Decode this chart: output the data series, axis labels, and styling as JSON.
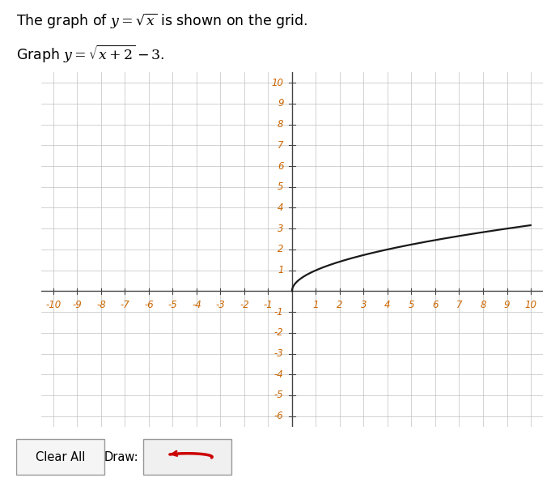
{
  "title_line1": "The graph of $y = \\sqrt{x}$ is shown on the grid.",
  "title_line2": "Graph $y = \\sqrt{x+2} - 3$.",
  "xlim": [
    -10.5,
    10.5
  ],
  "ylim": [
    -6.5,
    10.5
  ],
  "xticks": [
    -10,
    -9,
    -8,
    -7,
    -6,
    -5,
    -4,
    -3,
    -2,
    -1,
    1,
    2,
    3,
    4,
    5,
    6,
    7,
    8,
    9,
    10
  ],
  "yticks": [
    -6,
    -5,
    -4,
    -3,
    -2,
    -1,
    1,
    2,
    3,
    4,
    5,
    6,
    7,
    8,
    9,
    10
  ],
  "grid_xticks": [
    -10,
    -9,
    -8,
    -7,
    -6,
    -5,
    -4,
    -3,
    -2,
    -1,
    0,
    1,
    2,
    3,
    4,
    5,
    6,
    7,
    8,
    9,
    10
  ],
  "grid_yticks": [
    -6,
    -5,
    -4,
    -3,
    -2,
    -1,
    0,
    1,
    2,
    3,
    4,
    5,
    6,
    7,
    8,
    9,
    10
  ],
  "curve_color": "#1a1a1a",
  "curve_linewidth": 1.6,
  "grid_color": "#c0c0c0",
  "axis_color": "#444444",
  "bg_color": "#ffffff",
  "title_color": "#000000",
  "title_fontsize": 12.5,
  "tick_fontsize": 8.5,
  "tick_color": "#cc6600",
  "figsize": [
    6.81,
    5.95
  ],
  "dpi": 100
}
